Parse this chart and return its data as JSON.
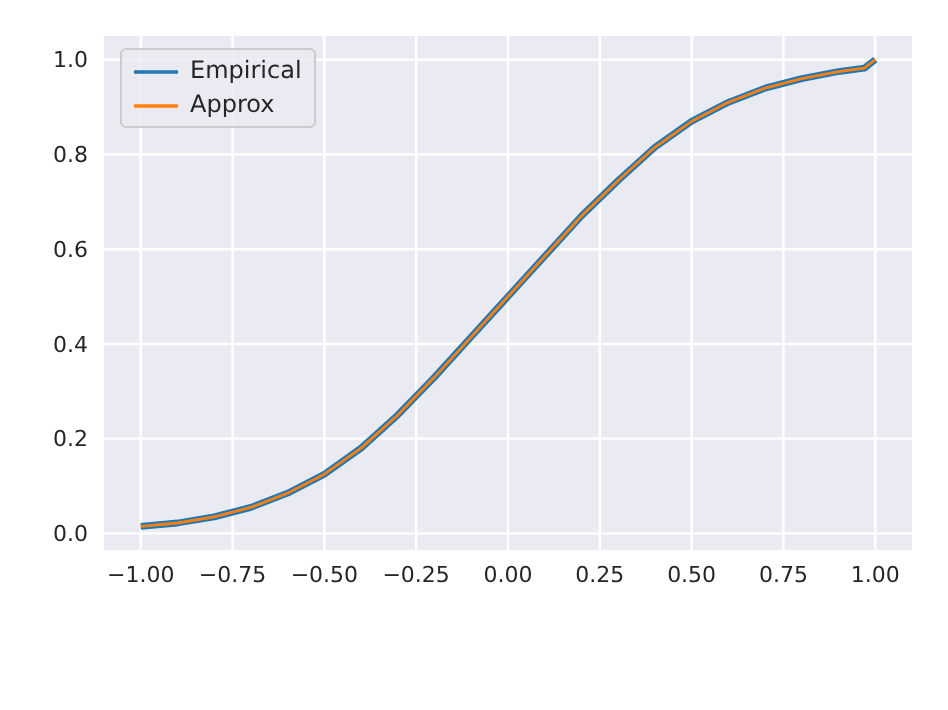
{
  "chart_data": {
    "type": "line",
    "x": [
      -1,
      -0.9,
      -0.8,
      -0.7,
      -0.6,
      -0.5,
      -0.4,
      -0.3,
      -0.2,
      -0.1,
      0,
      0.1,
      0.2,
      0.3,
      0.4,
      0.5,
      0.6,
      0.7,
      0.8,
      0.9,
      0.97,
      1
    ],
    "series": [
      {
        "name": "Empirical",
        "color": "#1f77b4",
        "values": [
          0.015,
          0.022,
          0.035,
          0.055,
          0.085,
          0.125,
          0.18,
          0.25,
          0.33,
          0.415,
          0.5,
          0.585,
          0.67,
          0.745,
          0.815,
          0.87,
          0.91,
          0.94,
          0.96,
          0.975,
          0.982,
          1.0
        ]
      },
      {
        "name": "Approx",
        "color": "#ff7f0e",
        "values": [
          0.015,
          0.022,
          0.035,
          0.055,
          0.085,
          0.125,
          0.18,
          0.25,
          0.33,
          0.415,
          0.5,
          0.585,
          0.67,
          0.745,
          0.815,
          0.87,
          0.91,
          0.94,
          0.96,
          0.975,
          0.982,
          1.0
        ]
      }
    ],
    "xlim": [
      -1.1,
      1.1
    ],
    "xticks": [
      {
        "value": -1,
        "label": "−1.00"
      },
      {
        "value": -0.75,
        "label": "−0.75"
      },
      {
        "value": -0.5,
        "label": "−0.50"
      },
      {
        "value": -0.25,
        "label": "−0.25"
      },
      {
        "value": 0,
        "label": "0.00"
      },
      {
        "value": 0.25,
        "label": "0.25"
      },
      {
        "value": 0.5,
        "label": "0.50"
      },
      {
        "value": 0.75,
        "label": "0.75"
      },
      {
        "value": 1,
        "label": "1.00"
      }
    ],
    "ylim": [
      -0.035,
      1.05
    ],
    "yticks": [
      {
        "value": 0,
        "label": "0.0"
      },
      {
        "value": 0.2,
        "label": "0.2"
      },
      {
        "value": 0.4,
        "label": "0.4"
      },
      {
        "value": 0.6,
        "label": "0.6"
      },
      {
        "value": 0.8,
        "label": "0.8"
      },
      {
        "value": 1,
        "label": "1.0"
      }
    ],
    "grid": true,
    "legend": "top left",
    "marker": "none",
    "line_style": "solid"
  }
}
